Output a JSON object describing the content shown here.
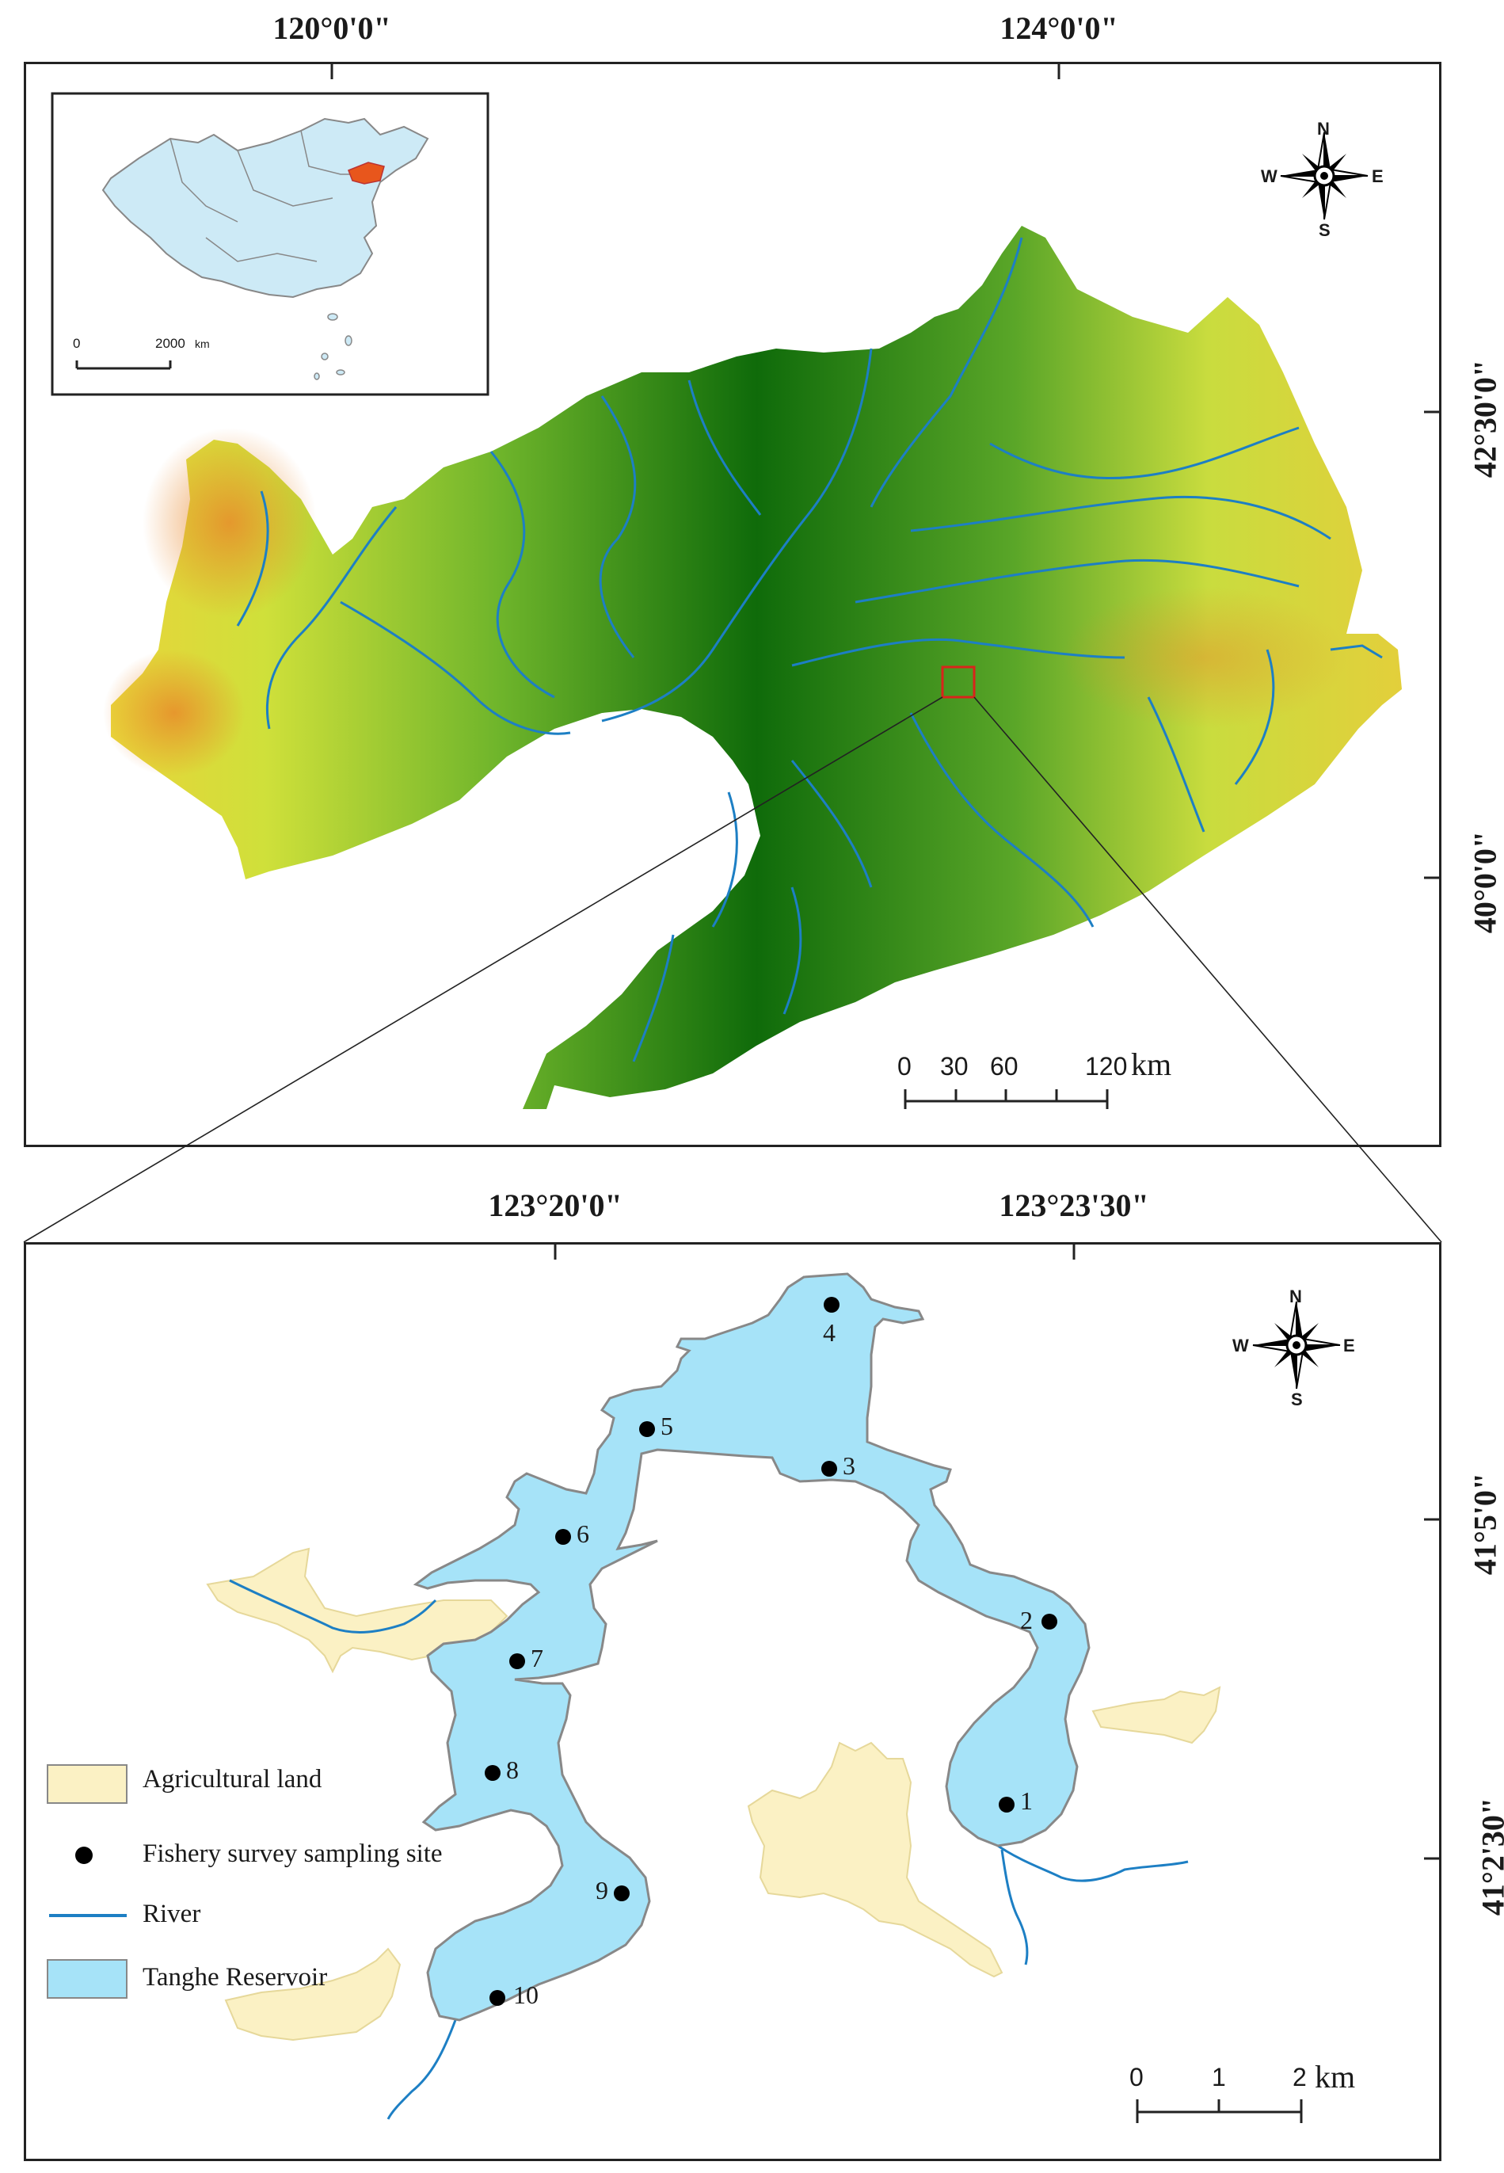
{
  "top_map": {
    "lon_labels": [
      "120°0'0\"",
      "124°0'0\""
    ],
    "lat_labels": [
      "42°30'0\"",
      "40°0'0\""
    ],
    "scale": {
      "ticks": [
        "0",
        "30",
        "60",
        "120"
      ],
      "unit": "km"
    },
    "inset": {
      "scale_ticks": [
        "0",
        "2000"
      ],
      "scale_unit": "km"
    }
  },
  "bottom_map": {
    "lon_labels": [
      "123°20'0\"",
      "123°23'30\""
    ],
    "lat_labels": [
      "41°5'0\"",
      "41°2'30\""
    ],
    "scale": {
      "ticks": [
        "0",
        "1",
        "2"
      ],
      "unit": "km"
    },
    "sites": [
      "1",
      "2",
      "3",
      "4",
      "5",
      "6",
      "7",
      "8",
      "9",
      "10"
    ]
  },
  "compass": {
    "n": "N",
    "s": "S",
    "e": "E",
    "w": "W"
  },
  "legend": [
    {
      "label": "Agricultural land",
      "color": "#fbf1c4"
    },
    {
      "label": "Fishery survey sampling site",
      "color": "#000000"
    },
    {
      "label": "River",
      "color": "#1d7fc4"
    },
    {
      "label": "Tanghe Reservoir",
      "color": "#a6e3f8"
    }
  ],
  "colors": {
    "reservoir": "#a6e3f8",
    "agri": "#fbf1c4",
    "river": "#1d7fc4",
    "highlight": "#e8561c",
    "china_fill": "#cdeaf6"
  }
}
